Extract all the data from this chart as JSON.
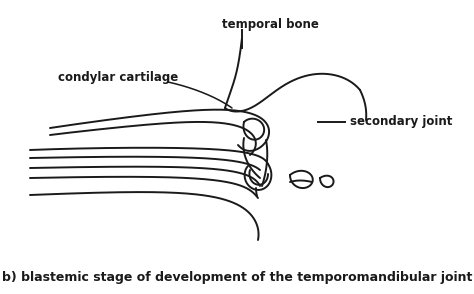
{
  "background_color": "#ffffff",
  "title_text": "b) blastemic stage of development of the temporomandibular joint",
  "title_fontsize": 9,
  "title_fontweight": "bold",
  "label_temporal_bone": "temporal bone",
  "label_condylar_cartilage": "condylar cartilage",
  "label_secondary_joint": "secondary joint",
  "line_color": "#1a1a1a",
  "line_width": 1.4,
  "fig_width": 4.74,
  "fig_height": 2.94,
  "dpi": 100
}
